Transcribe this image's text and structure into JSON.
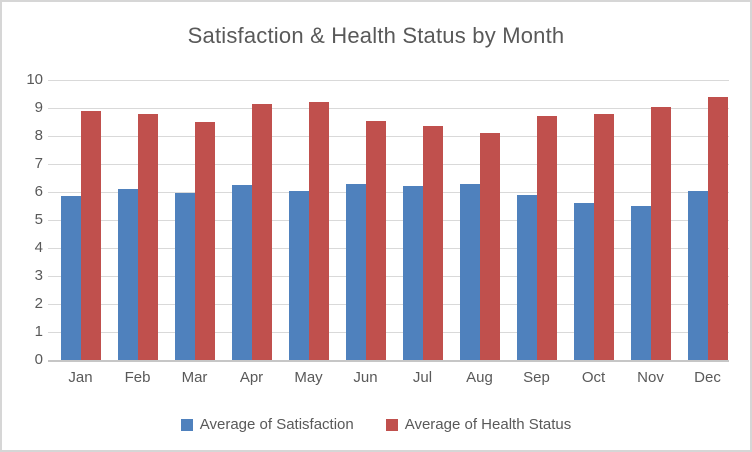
{
  "chart_data": {
    "type": "bar",
    "title": "Satisfaction & Health Status by Month",
    "categories": [
      "Jan",
      "Feb",
      "Mar",
      "Apr",
      "May",
      "Jun",
      "Jul",
      "Aug",
      "Sep",
      "Oct",
      "Nov",
      "Dec"
    ],
    "series": [
      {
        "name": "Average of Satisfaction",
        "color": "#4F81BD",
        "values": [
          5.85,
          6.1,
          5.95,
          6.25,
          6.05,
          6.3,
          6.2,
          6.3,
          5.9,
          5.6,
          5.5,
          6.05
        ]
      },
      {
        "name": "Average of Health Status",
        "color": "#C0504D",
        "values": [
          8.9,
          8.8,
          8.5,
          9.15,
          9.2,
          8.55,
          8.35,
          8.1,
          8.7,
          8.8,
          9.05,
          9.4
        ]
      }
    ],
    "xlabel": "",
    "ylabel": "",
    "ylim": [
      0,
      10
    ],
    "yticks": [
      0,
      1,
      2,
      3,
      4,
      5,
      6,
      7,
      8,
      9,
      10
    ],
    "grid": true,
    "legend_position": "bottom"
  },
  "styles": {
    "text_color": "#595959",
    "gridline_color": "#D9D9D9",
    "axis_line_color": "#C6C6C6",
    "border_color": "#D6D6D6",
    "background": "#FFFFFF"
  }
}
